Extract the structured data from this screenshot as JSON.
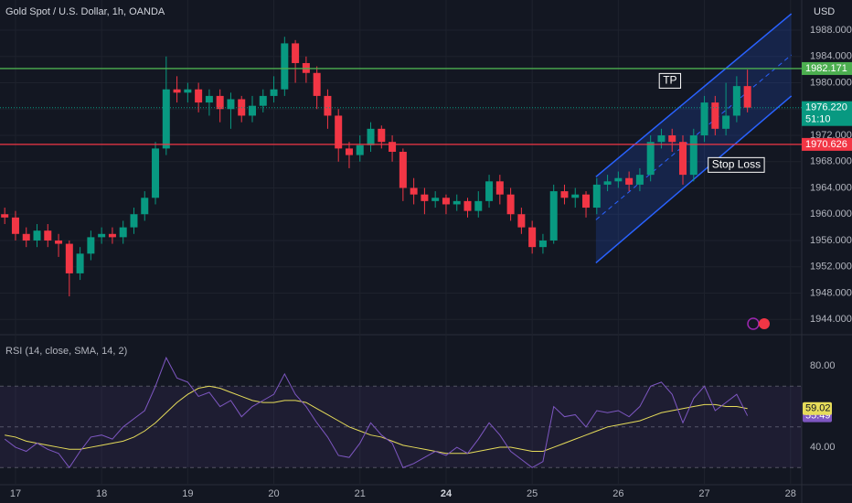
{
  "chart_data": [
    {
      "type": "candlestick",
      "title": "Gold Spot / U.S. Dollar, 1h, OANDA",
      "currency": "USD",
      "x": [
        -0.125,
        0,
        0.125,
        0.25,
        0.375,
        0.5,
        0.625,
        0.75,
        0.875,
        1,
        1.125,
        1.25,
        1.375,
        1.5,
        1.625,
        1.75,
        1.875,
        2,
        2.125,
        2.25,
        2.375,
        2.5,
        2.625,
        2.75,
        2.875,
        3,
        3.125,
        3.25,
        3.375,
        3.5,
        3.625,
        3.75,
        3.875,
        4,
        4.125,
        4.25,
        4.375,
        4.5,
        4.625,
        4.75,
        4.875,
        5,
        5.125,
        5.25,
        5.375,
        5.5,
        5.625,
        5.75,
        5.875,
        6,
        6.125,
        6.25,
        6.375,
        6.5,
        6.625,
        6.75,
        6.875,
        7,
        7.125,
        7.25,
        7.375,
        7.5,
        7.625,
        7.75,
        7.875,
        8,
        8.125,
        8.25,
        8.375,
        8.5
      ],
      "open": [
        1960,
        1959.5,
        1957,
        1956,
        1957.5,
        1956,
        1955.5,
        1951,
        1954,
        1956.5,
        1957,
        1956.5,
        1958,
        1960,
        1962.5,
        1970,
        1979,
        1978.5,
        1979,
        1977,
        1978,
        1976,
        1977.5,
        1975,
        1976.5,
        1978,
        1979,
        1986,
        1983,
        1981.5,
        1978,
        1975,
        1970,
        1969,
        1970.5,
        1973,
        1971,
        1969.5,
        1964,
        1963,
        1962,
        1962.5,
        1961.5,
        1962,
        1960.5,
        1962,
        1965,
        1963,
        1960,
        1958,
        1955,
        1956,
        1963.5,
        1962.5,
        1963,
        1961,
        1964.5,
        1965,
        1965.5,
        1964.5,
        1966,
        1971,
        1972,
        1971,
        1966,
        1972,
        1977,
        1973,
        1975,
        1979.5
      ],
      "high": [
        1961,
        1960.5,
        1958,
        1958.5,
        1958.5,
        1957,
        1956,
        1955,
        1957.5,
        1958,
        1958,
        1959,
        1961,
        1963.5,
        1971,
        1984,
        1981,
        1980,
        1980,
        1979,
        1979,
        1978.5,
        1978,
        1978,
        1979,
        1981,
        1987,
        1986.5,
        1984,
        1982.5,
        1979,
        1976,
        1971,
        1972,
        1974,
        1973.5,
        1972,
        1970,
        1965.5,
        1964,
        1963.5,
        1963,
        1963,
        1962.5,
        1963.5,
        1966,
        1966,
        1964,
        1961,
        1959,
        1957,
        1964.5,
        1964.5,
        1964,
        1963.5,
        1965.5,
        1966,
        1966.5,
        1966.5,
        1967,
        1972,
        1973,
        1973,
        1972,
        1973,
        1978,
        1978,
        1980,
        1981,
        1982
      ],
      "low": [
        1958.5,
        1956,
        1955,
        1955,
        1955,
        1953.5,
        1947.5,
        1950,
        1953,
        1955.5,
        1955.5,
        1955.5,
        1957,
        1959,
        1961.5,
        1969,
        1977,
        1977,
        1975.5,
        1975,
        1974,
        1973,
        1974,
        1974,
        1975.5,
        1977,
        1978,
        1980,
        1980,
        1976,
        1973,
        1968,
        1967,
        1968,
        1969.5,
        1970,
        1968,
        1962,
        1961.5,
        1960,
        1961,
        1960,
        1960.5,
        1959.5,
        1959.5,
        1961,
        1961.5,
        1959,
        1957,
        1954,
        1954,
        1955.5,
        1961.5,
        1961,
        1959.5,
        1960,
        1963.5,
        1964,
        1963.5,
        1963.5,
        1965,
        1970,
        1969.5,
        1964.5,
        1965,
        1971,
        1972,
        1972,
        1974,
        1975.5
      ],
      "close": [
        1959.5,
        1957,
        1956,
        1957.5,
        1956,
        1955.5,
        1951,
        1954,
        1956.5,
        1957,
        1956.5,
        1958,
        1960,
        1962.5,
        1970,
        1979,
        1978.5,
        1979,
        1977,
        1978,
        1976,
        1977.5,
        1975,
        1976.5,
        1978,
        1979,
        1986,
        1983,
        1981.5,
        1978,
        1975,
        1970,
        1969,
        1970.5,
        1973,
        1971,
        1969.5,
        1964,
        1963,
        1962,
        1962.5,
        1961.5,
        1962,
        1960.5,
        1962,
        1965,
        1963,
        1960,
        1958,
        1955,
        1956,
        1963.5,
        1962.5,
        1963,
        1961,
        1964.5,
        1965,
        1965.5,
        1964.5,
        1966,
        1971,
        1972,
        1971,
        1966,
        1972,
        1977,
        1973,
        1975,
        1979.5,
        1976.22
      ],
      "up_color": "#089981",
      "down_color": "#f23645",
      "xlim": [
        -0.18,
        9.13
      ],
      "ylim": [
        1941.8,
        1992.6
      ],
      "yticks": [
        {
          "value": 1944,
          "label": "1944.000"
        },
        {
          "value": 1948,
          "label": "1948.000"
        },
        {
          "value": 1952,
          "label": "1952.000"
        },
        {
          "value": 1956,
          "label": "1956.000"
        },
        {
          "value": 1960,
          "label": "1960.000"
        },
        {
          "value": 1964,
          "label": "1964.000"
        },
        {
          "value": 1968,
          "label": "1968.000"
        },
        {
          "value": 1972,
          "label": "1972.000"
        },
        {
          "value": 1976,
          "label": "1976.000"
        },
        {
          "value": 1980,
          "label": "1980.000"
        },
        {
          "value": 1984,
          "label": "1984.000"
        },
        {
          "value": 1988,
          "label": "1988.000"
        }
      ],
      "xticks": [
        {
          "value": 0,
          "label": "17"
        },
        {
          "value": 1,
          "label": "18"
        },
        {
          "value": 2,
          "label": "19"
        },
        {
          "value": 3,
          "label": "20"
        },
        {
          "value": 4,
          "label": "21"
        },
        {
          "value": 5,
          "label": "24"
        },
        {
          "value": 6,
          "label": "25"
        },
        {
          "value": 7,
          "label": "26"
        },
        {
          "value": 8,
          "label": "27"
        },
        {
          "value": 9,
          "label": "28"
        }
      ],
      "hlines": [
        {
          "value": 1982.171,
          "color": "#4caf50"
        },
        {
          "value": 1970.626,
          "color": "#f23645"
        }
      ],
      "last_price": {
        "value": 1976.22,
        "label": "1976.220",
        "countdown": "51:10"
      },
      "channel": {
        "x": [
          6.74,
          9.01
        ],
        "lower": [
          1952.6,
          1978
        ],
        "upper": [
          1965.7,
          1990.5
        ]
      },
      "annotations": [
        {
          "text": "TP",
          "x": 7.6,
          "y": 1980.3
        },
        {
          "text": "Stop Loss",
          "x": 8.37,
          "y": 1967.5
        }
      ]
    },
    {
      "type": "line",
      "title": "RSI (14, close, SMA, 14, 2)",
      "x": [
        -0.125,
        0,
        0.125,
        0.25,
        0.375,
        0.5,
        0.625,
        0.75,
        0.875,
        1,
        1.125,
        1.25,
        1.375,
        1.5,
        1.625,
        1.75,
        1.875,
        2,
        2.125,
        2.25,
        2.375,
        2.5,
        2.625,
        2.75,
        2.875,
        3,
        3.125,
        3.25,
        3.375,
        3.5,
        3.625,
        3.75,
        3.875,
        4,
        4.125,
        4.25,
        4.375,
        4.5,
        4.625,
        4.75,
        4.875,
        5,
        5.125,
        5.25,
        5.375,
        5.5,
        5.625,
        5.75,
        5.875,
        6,
        6.125,
        6.25,
        6.375,
        6.5,
        6.625,
        6.75,
        6.875,
        7,
        7.125,
        7.25,
        7.375,
        7.5,
        7.625,
        7.75,
        7.875,
        8,
        8.125,
        8.25,
        8.375,
        8.5
      ],
      "series": [
        {
          "color": "#7e57c2",
          "values": [
            44,
            40,
            38,
            42,
            39,
            37,
            30,
            38,
            45,
            46,
            44,
            50,
            54,
            58,
            70,
            84,
            74,
            72,
            65,
            67,
            60,
            63,
            55,
            60,
            63,
            66,
            76,
            66,
            60,
            52,
            45,
            36,
            35,
            42,
            52,
            46,
            42,
            30,
            32,
            35,
            38,
            36,
            40,
            37,
            44,
            52,
            46,
            38,
            34,
            30,
            33,
            60,
            55,
            56,
            50,
            58,
            57,
            58,
            55,
            60,
            70,
            72,
            66,
            52,
            64,
            70,
            58,
            62,
            66,
            55.49
          ]
        },
        {
          "color": "#e6dc5a",
          "values": [
            46,
            45,
            43,
            42,
            41,
            40,
            39,
            39,
            40,
            41,
            42,
            43,
            45,
            48,
            52,
            57,
            62,
            66,
            69,
            70,
            69,
            67,
            65,
            63,
            62,
            62,
            63,
            63,
            62,
            59,
            56,
            53,
            50,
            48,
            46,
            45,
            43,
            41,
            40,
            39,
            38,
            37,
            37,
            37,
            38,
            39,
            40,
            40,
            39,
            38,
            38,
            40,
            42,
            44,
            46,
            48,
            50,
            51,
            52,
            53,
            55,
            57,
            58,
            59,
            60,
            61,
            61,
            60,
            60,
            59.02
          ]
        }
      ],
      "xlim": [
        -0.18,
        9.13
      ],
      "ylim": [
        21.6,
        94.4
      ],
      "yticks": [
        {
          "value": 80,
          "label": "80.00"
        },
        {
          "value": 40,
          "label": "40.00"
        }
      ],
      "bands": [
        70,
        50,
        30
      ]
    }
  ]
}
